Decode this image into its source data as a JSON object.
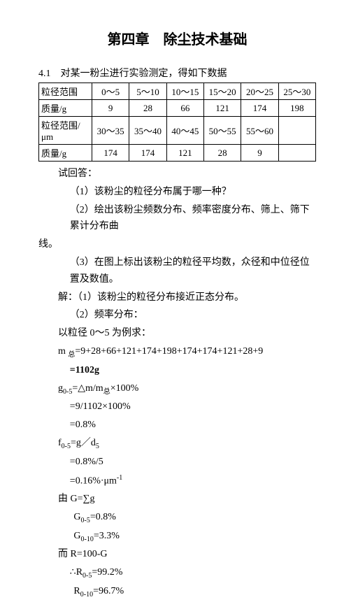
{
  "title": "第四章　除尘技术基础",
  "section_head": "4.1　对某一粉尘进行实验测定，得如下数据",
  "table": {
    "row1_label": "粒径范围",
    "row1": [
      "0～5",
      "5～10",
      "10～15",
      "15～20",
      "20～25",
      "25～30"
    ],
    "row2_label": "质量/g",
    "row2": [
      "9",
      "28",
      "66",
      "121",
      "174",
      "198"
    ],
    "row3_label": "粒径范围/μm",
    "row3": [
      "30～35",
      "35～40",
      "40～45",
      "50～55",
      "55～60",
      ""
    ],
    "row4_label": "质量/g",
    "row4": [
      "174",
      "174",
      "121",
      "28",
      "9",
      ""
    ]
  },
  "lines": {
    "l1": "试回答：",
    "l2": "（1）该粉尘的粒径分布属于哪一种？",
    "l3": "（2）绘出该粉尘频数分布、频率密度分布、筛上、筛下累计分布曲",
    "l3b": "线。",
    "l4": "（3）在图上标出该粉尘的粒径平均数，众径和中位径位置及数值。",
    "l5": "解：（1）该粉尘的粒径分布接近正态分布。",
    "l6": "（2）频率分布：",
    "l7": "以粒径 0～5 为例求：",
    "f1a": "m 总=9+28+66+121+174+198+174+174+121+28+9",
    "f1b": "=1102g",
    "f2a": "g0-5=△m/m总×100%",
    "f2b": "=9/1102×100%",
    "f2c": "=0.8%",
    "f3a": "f0-5=g／d5",
    "f3b": "=0.8%/5",
    "f3c": "=0.16%·μm-1",
    "f4a": "由 G=∑g",
    "f4b": "G0-5=0.8%",
    "f4c": "G0-10=3.3%",
    "f5a": "而 R=100-G",
    "f5b": "∴R0-5=99.2%",
    "f5c": "R0-10=96.7%"
  }
}
